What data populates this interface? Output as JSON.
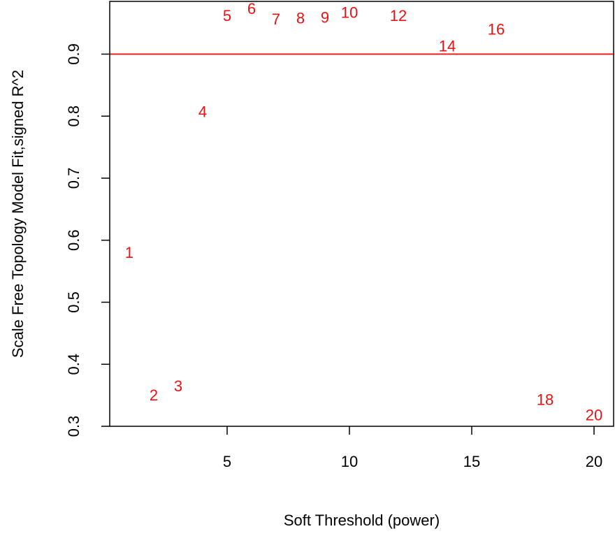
{
  "chart_data": {
    "type": "scatter",
    "title": "",
    "xlabel": "Soft Threshold (power)",
    "ylabel": "Scale Free Topology Model Fit,signed R^2",
    "xlim": [
      0.2,
      20.8
    ],
    "ylim": [
      0.3,
      0.985
    ],
    "xticks": [
      5,
      10,
      15,
      20
    ],
    "yticks": [
      0.3,
      0.4,
      0.5,
      0.6,
      0.7,
      0.8,
      0.9
    ],
    "grid": false,
    "marker": "text",
    "point_color": "#ee1111",
    "hline": {
      "y": 0.9,
      "color": "#ee1111"
    },
    "points": [
      {
        "x": 1,
        "y": 0.58,
        "label": "1"
      },
      {
        "x": 2,
        "y": 0.35,
        "label": "2"
      },
      {
        "x": 3,
        "y": 0.365,
        "label": "3"
      },
      {
        "x": 4,
        "y": 0.807,
        "label": "4"
      },
      {
        "x": 5,
        "y": 0.962,
        "label": "5"
      },
      {
        "x": 6,
        "y": 0.973,
        "label": "6"
      },
      {
        "x": 7,
        "y": 0.956,
        "label": "7"
      },
      {
        "x": 8,
        "y": 0.958,
        "label": "8"
      },
      {
        "x": 9,
        "y": 0.959,
        "label": "9"
      },
      {
        "x": 10,
        "y": 0.967,
        "label": "10"
      },
      {
        "x": 12,
        "y": 0.962,
        "label": "12"
      },
      {
        "x": 14,
        "y": 0.913,
        "label": "14"
      },
      {
        "x": 16,
        "y": 0.94,
        "label": "16"
      },
      {
        "x": 18,
        "y": 0.343,
        "label": "18"
      },
      {
        "x": 20,
        "y": 0.318,
        "label": "20"
      }
    ]
  }
}
